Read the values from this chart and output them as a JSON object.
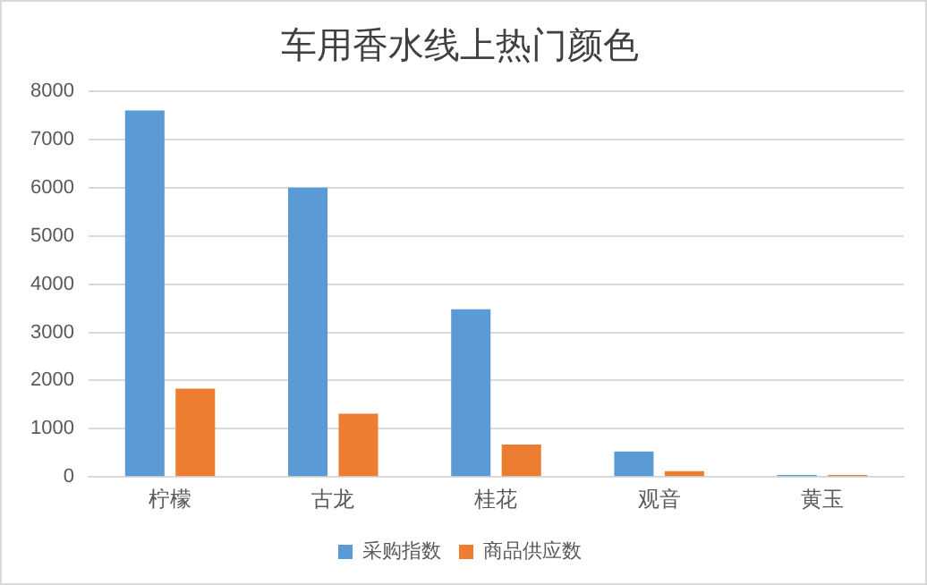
{
  "chart_data": {
    "type": "bar",
    "title": "车用香水线上热门颜色",
    "categories": [
      "柠檬",
      "古龙",
      "桂花",
      "观音",
      "黄玉"
    ],
    "series": [
      {
        "name": "采购指数",
        "color": "#5b9bd5",
        "values": [
          7600,
          6000,
          3480,
          530,
          40
        ]
      },
      {
        "name": "商品供应数",
        "color": "#ed7d31",
        "values": [
          1830,
          1310,
          670,
          120,
          40
        ]
      }
    ],
    "ylim": [
      0,
      8000
    ],
    "yticks": [
      0,
      1000,
      2000,
      3000,
      4000,
      5000,
      6000,
      7000,
      8000
    ],
    "grid": "y",
    "legend": "bottom"
  }
}
